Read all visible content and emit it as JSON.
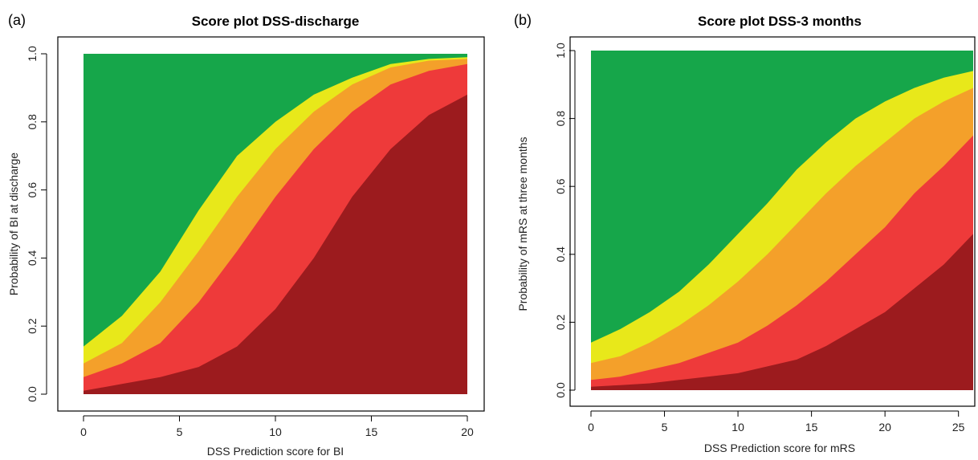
{
  "colors": {
    "green": "#16a64a",
    "yellow": "#e8e81a",
    "orange": "#f4a02a",
    "red": "#ee3a3a",
    "darkred": "#9c1b1e"
  },
  "chart_data": [
    {
      "panel_label": "(a)",
      "type": "area",
      "stacked": true,
      "title": "Score plot DSS-discharge",
      "xlabel": "DSS Prediction score for BI",
      "ylabel": "Probability of BI at discharge",
      "xlim": [
        0,
        20
      ],
      "ylim": [
        0,
        1
      ],
      "xticks": [
        "0",
        "5",
        "10",
        "15",
        "20"
      ],
      "yticks": [
        "0.0",
        "0.2",
        "0.4",
        "0.6",
        "0.8",
        "1.0"
      ],
      "grid": false,
      "legend": "none",
      "x": [
        0,
        2,
        4,
        6,
        8,
        10,
        12,
        14,
        16,
        18,
        20
      ],
      "boundaries": [
        {
          "color_key": "darkred",
          "values": [
            0.01,
            0.03,
            0.05,
            0.08,
            0.14,
            0.25,
            0.4,
            0.58,
            0.72,
            0.82,
            0.88
          ]
        },
        {
          "color_key": "red",
          "values": [
            0.05,
            0.09,
            0.15,
            0.27,
            0.42,
            0.58,
            0.72,
            0.83,
            0.91,
            0.95,
            0.97
          ]
        },
        {
          "color_key": "orange",
          "values": [
            0.09,
            0.15,
            0.27,
            0.42,
            0.58,
            0.72,
            0.83,
            0.91,
            0.96,
            0.98,
            0.985
          ]
        },
        {
          "color_key": "yellow",
          "values": [
            0.14,
            0.23,
            0.36,
            0.54,
            0.7,
            0.8,
            0.88,
            0.93,
            0.97,
            0.985,
            0.99
          ]
        },
        {
          "color_key": "green",
          "values": [
            1,
            1,
            1,
            1,
            1,
            1,
            1,
            1,
            1,
            1,
            1
          ]
        }
      ]
    },
    {
      "panel_label": "(b)",
      "type": "area",
      "stacked": true,
      "title": "Score plot DSS-3 months",
      "xlabel": "DSS Prediction score for mRS",
      "ylabel": "Probability of mRS at three months",
      "xlim": [
        0,
        26
      ],
      "ylim": [
        0,
        1
      ],
      "xticks": [
        "0",
        "5",
        "10",
        "15",
        "20",
        "25"
      ],
      "yticks": [
        "0.0",
        "0.2",
        "0.4",
        "0.6",
        "0.8",
        "1.0"
      ],
      "grid": false,
      "legend": "none",
      "x": [
        0,
        2,
        4,
        6,
        8,
        10,
        12,
        14,
        16,
        18,
        20,
        22,
        24,
        26
      ],
      "boundaries": [
        {
          "color_key": "darkred",
          "values": [
            0.01,
            0.015,
            0.02,
            0.03,
            0.04,
            0.05,
            0.07,
            0.09,
            0.13,
            0.18,
            0.23,
            0.3,
            0.37,
            0.46
          ]
        },
        {
          "color_key": "red",
          "values": [
            0.03,
            0.04,
            0.06,
            0.08,
            0.11,
            0.14,
            0.19,
            0.25,
            0.32,
            0.4,
            0.48,
            0.58,
            0.66,
            0.75
          ]
        },
        {
          "color_key": "orange",
          "values": [
            0.08,
            0.1,
            0.14,
            0.19,
            0.25,
            0.32,
            0.4,
            0.49,
            0.58,
            0.66,
            0.73,
            0.8,
            0.85,
            0.89
          ]
        },
        {
          "color_key": "yellow",
          "values": [
            0.14,
            0.18,
            0.23,
            0.29,
            0.37,
            0.46,
            0.55,
            0.65,
            0.73,
            0.8,
            0.85,
            0.89,
            0.92,
            0.94
          ]
        },
        {
          "color_key": "green",
          "values": [
            1,
            1,
            1,
            1,
            1,
            1,
            1,
            1,
            1,
            1,
            1,
            1,
            1,
            1
          ]
        }
      ]
    }
  ]
}
